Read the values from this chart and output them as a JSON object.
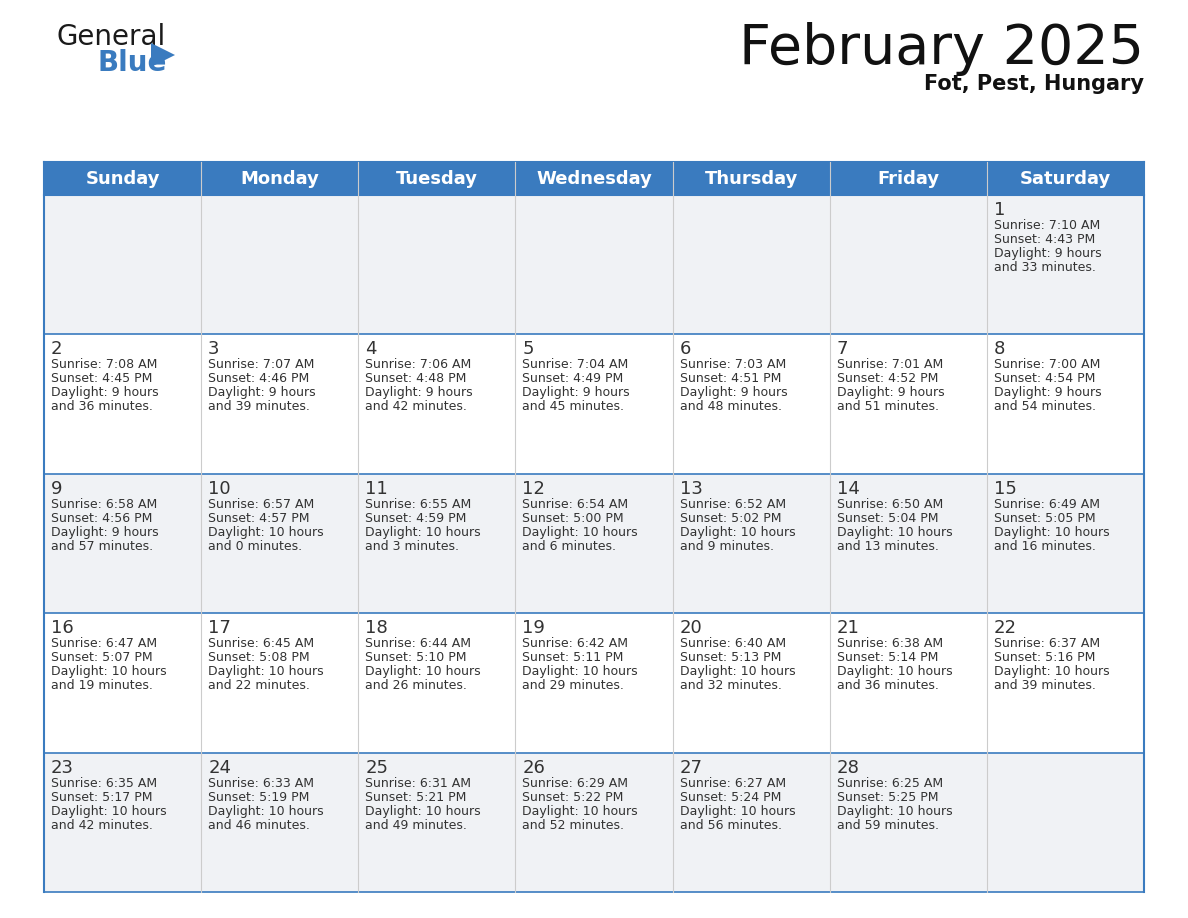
{
  "title": "February 2025",
  "subtitle": "Fot, Pest, Hungary",
  "header_color": "#3a7bbf",
  "header_text_color": "#ffffff",
  "cell_bg_even": "#f0f2f5",
  "cell_bg_odd": "#ffffff",
  "text_color": "#333333",
  "day_number_color": "#333333",
  "line_color": "#3a7bbf",
  "grid_line_color": "#cccccc",
  "days_of_week": [
    "Sunday",
    "Monday",
    "Tuesday",
    "Wednesday",
    "Thursday",
    "Friday",
    "Saturday"
  ],
  "weeks": [
    [
      {
        "day": null,
        "info": null
      },
      {
        "day": null,
        "info": null
      },
      {
        "day": null,
        "info": null
      },
      {
        "day": null,
        "info": null
      },
      {
        "day": null,
        "info": null
      },
      {
        "day": null,
        "info": null
      },
      {
        "day": 1,
        "info": "Sunrise: 7:10 AM\nSunset: 4:43 PM\nDaylight: 9 hours\nand 33 minutes."
      }
    ],
    [
      {
        "day": 2,
        "info": "Sunrise: 7:08 AM\nSunset: 4:45 PM\nDaylight: 9 hours\nand 36 minutes."
      },
      {
        "day": 3,
        "info": "Sunrise: 7:07 AM\nSunset: 4:46 PM\nDaylight: 9 hours\nand 39 minutes."
      },
      {
        "day": 4,
        "info": "Sunrise: 7:06 AM\nSunset: 4:48 PM\nDaylight: 9 hours\nand 42 minutes."
      },
      {
        "day": 5,
        "info": "Sunrise: 7:04 AM\nSunset: 4:49 PM\nDaylight: 9 hours\nand 45 minutes."
      },
      {
        "day": 6,
        "info": "Sunrise: 7:03 AM\nSunset: 4:51 PM\nDaylight: 9 hours\nand 48 minutes."
      },
      {
        "day": 7,
        "info": "Sunrise: 7:01 AM\nSunset: 4:52 PM\nDaylight: 9 hours\nand 51 minutes."
      },
      {
        "day": 8,
        "info": "Sunrise: 7:00 AM\nSunset: 4:54 PM\nDaylight: 9 hours\nand 54 minutes."
      }
    ],
    [
      {
        "day": 9,
        "info": "Sunrise: 6:58 AM\nSunset: 4:56 PM\nDaylight: 9 hours\nand 57 minutes."
      },
      {
        "day": 10,
        "info": "Sunrise: 6:57 AM\nSunset: 4:57 PM\nDaylight: 10 hours\nand 0 minutes."
      },
      {
        "day": 11,
        "info": "Sunrise: 6:55 AM\nSunset: 4:59 PM\nDaylight: 10 hours\nand 3 minutes."
      },
      {
        "day": 12,
        "info": "Sunrise: 6:54 AM\nSunset: 5:00 PM\nDaylight: 10 hours\nand 6 minutes."
      },
      {
        "day": 13,
        "info": "Sunrise: 6:52 AM\nSunset: 5:02 PM\nDaylight: 10 hours\nand 9 minutes."
      },
      {
        "day": 14,
        "info": "Sunrise: 6:50 AM\nSunset: 5:04 PM\nDaylight: 10 hours\nand 13 minutes."
      },
      {
        "day": 15,
        "info": "Sunrise: 6:49 AM\nSunset: 5:05 PM\nDaylight: 10 hours\nand 16 minutes."
      }
    ],
    [
      {
        "day": 16,
        "info": "Sunrise: 6:47 AM\nSunset: 5:07 PM\nDaylight: 10 hours\nand 19 minutes."
      },
      {
        "day": 17,
        "info": "Sunrise: 6:45 AM\nSunset: 5:08 PM\nDaylight: 10 hours\nand 22 minutes."
      },
      {
        "day": 18,
        "info": "Sunrise: 6:44 AM\nSunset: 5:10 PM\nDaylight: 10 hours\nand 26 minutes."
      },
      {
        "day": 19,
        "info": "Sunrise: 6:42 AM\nSunset: 5:11 PM\nDaylight: 10 hours\nand 29 minutes."
      },
      {
        "day": 20,
        "info": "Sunrise: 6:40 AM\nSunset: 5:13 PM\nDaylight: 10 hours\nand 32 minutes."
      },
      {
        "day": 21,
        "info": "Sunrise: 6:38 AM\nSunset: 5:14 PM\nDaylight: 10 hours\nand 36 minutes."
      },
      {
        "day": 22,
        "info": "Sunrise: 6:37 AM\nSunset: 5:16 PM\nDaylight: 10 hours\nand 39 minutes."
      }
    ],
    [
      {
        "day": 23,
        "info": "Sunrise: 6:35 AM\nSunset: 5:17 PM\nDaylight: 10 hours\nand 42 minutes."
      },
      {
        "day": 24,
        "info": "Sunrise: 6:33 AM\nSunset: 5:19 PM\nDaylight: 10 hours\nand 46 minutes."
      },
      {
        "day": 25,
        "info": "Sunrise: 6:31 AM\nSunset: 5:21 PM\nDaylight: 10 hours\nand 49 minutes."
      },
      {
        "day": 26,
        "info": "Sunrise: 6:29 AM\nSunset: 5:22 PM\nDaylight: 10 hours\nand 52 minutes."
      },
      {
        "day": 27,
        "info": "Sunrise: 6:27 AM\nSunset: 5:24 PM\nDaylight: 10 hours\nand 56 minutes."
      },
      {
        "day": 28,
        "info": "Sunrise: 6:25 AM\nSunset: 5:25 PM\nDaylight: 10 hours\nand 59 minutes."
      },
      {
        "day": null,
        "info": null
      }
    ]
  ],
  "logo_general_color": "#1a1a1a",
  "logo_blue_color": "#3a7bbf",
  "logo_triangle_color": "#3a7bbf",
  "title_fontsize": 40,
  "subtitle_fontsize": 15,
  "header_fontsize": 13,
  "day_num_fontsize": 13,
  "info_fontsize": 9
}
